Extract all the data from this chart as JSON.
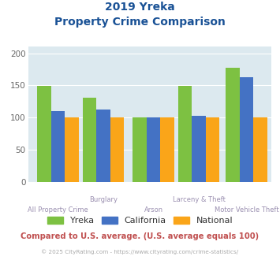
{
  "title_line1": "2019 Yreka",
  "title_line2": "Property Crime Comparison",
  "categories": [
    "All Property Crime",
    "Burglary",
    "Arson",
    "Larceny & Theft",
    "Motor Vehicle Theft"
  ],
  "label_row": [
    1,
    0,
    1,
    0,
    1
  ],
  "yreka": [
    149,
    131,
    100,
    149,
    177
  ],
  "california": [
    110,
    113,
    100,
    103,
    163
  ],
  "national": [
    100,
    100,
    100,
    100,
    100
  ],
  "bar_color_yreka": "#7dc142",
  "bar_color_california": "#4472c4",
  "bar_color_national": "#faa519",
  "ylim": [
    0,
    210
  ],
  "yticks": [
    0,
    50,
    100,
    150,
    200
  ],
  "plot_bg": "#dce9ef",
  "title_color": "#1a5296",
  "xlabel_color": "#9a8fb0",
  "footer_text": "Compared to U.S. average. (U.S. average equals 100)",
  "copyright_text": "© 2025 CityRating.com - https://www.cityrating.com/crime-statistics/",
  "footer_color": "#c05050",
  "copyright_color": "#aaaaaa",
  "legend_labels": [
    "Yreka",
    "California",
    "National"
  ],
  "bar_width": 0.22,
  "group_centers": [
    0.38,
    1.1,
    1.9,
    2.62,
    3.38
  ]
}
